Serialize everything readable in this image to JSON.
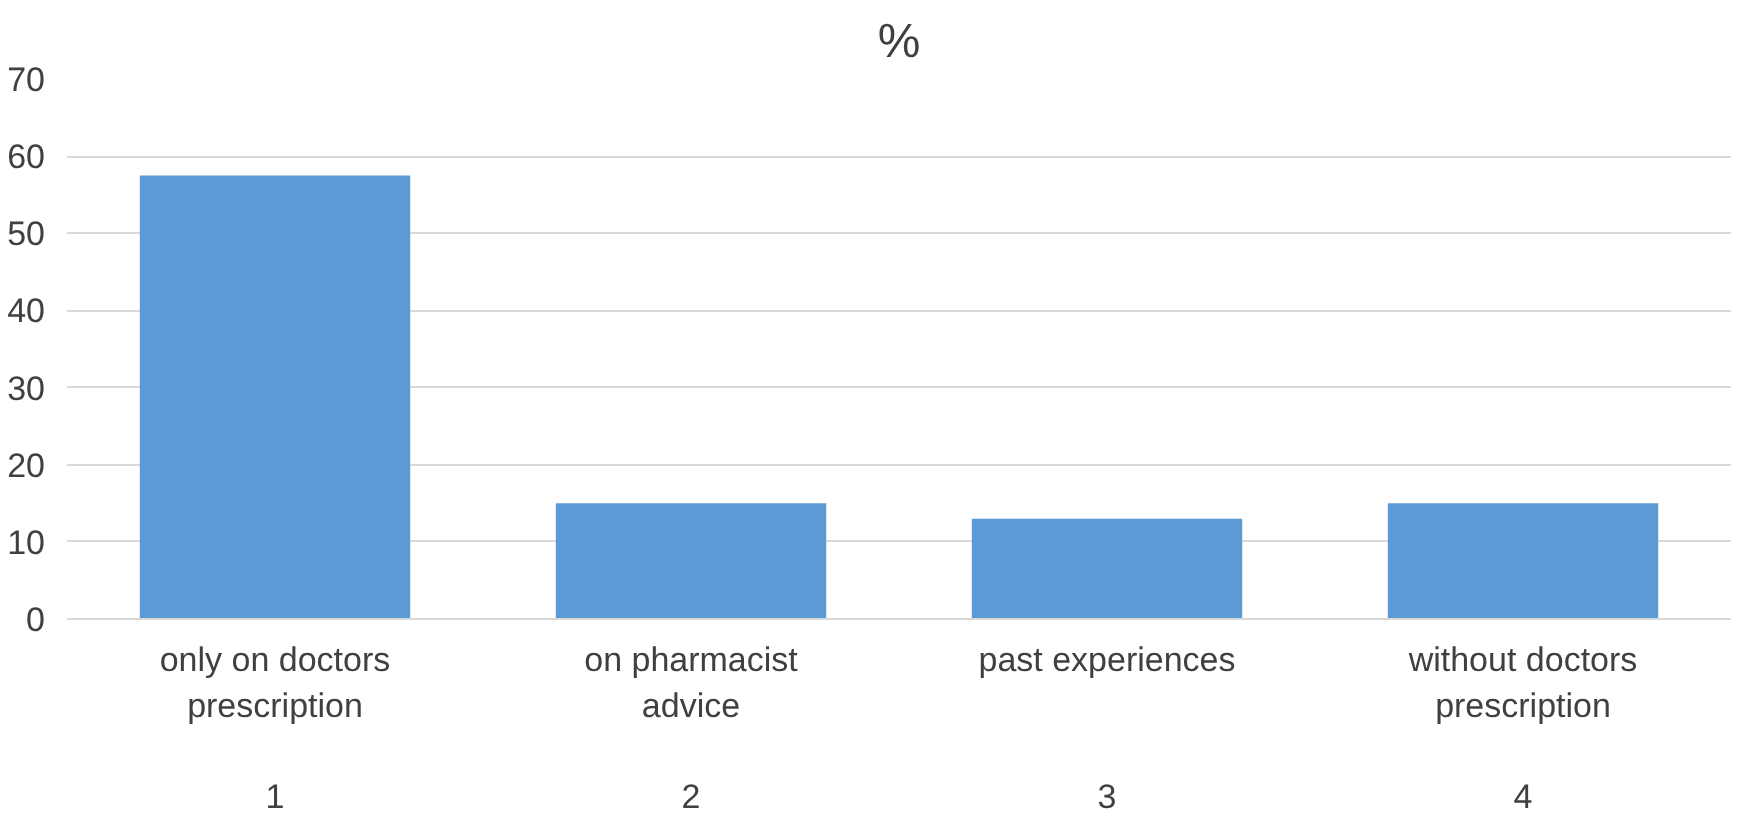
{
  "chart_data": {
    "type": "bar",
    "title": "%",
    "categories": [
      "only on doctors prescription",
      "on pharmacist advice",
      "past experiences",
      "without doctors prescription"
    ],
    "values": [
      57.5,
      15,
      13,
      15
    ],
    "color": "#5b9bd5",
    "ylim": [
      0,
      70
    ],
    "yticks": [
      0,
      10,
      20,
      30,
      40,
      50,
      60,
      70
    ],
    "grid": "y",
    "annotations": [
      "1",
      "2",
      "3",
      "4"
    ]
  }
}
